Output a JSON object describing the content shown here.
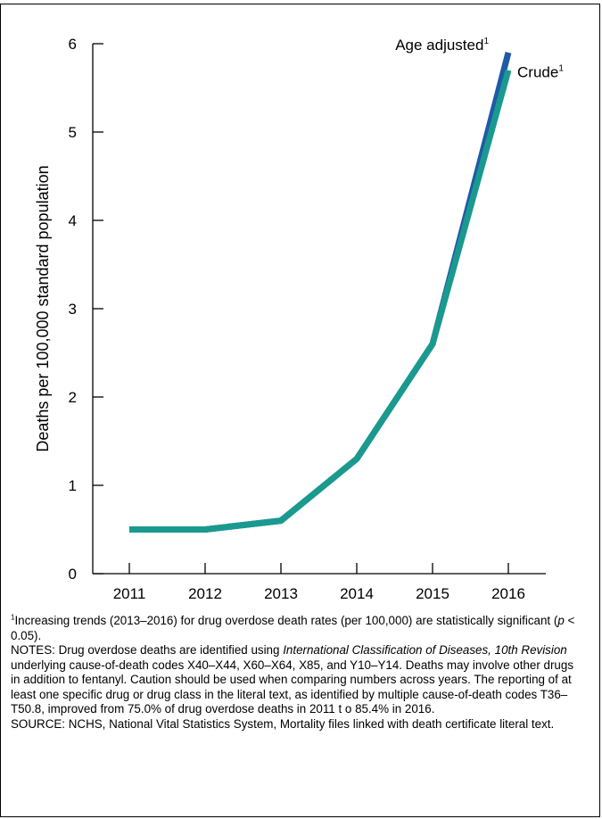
{
  "chart_data": {
    "type": "line",
    "title": "",
    "xlabel": "",
    "ylabel": "Deaths per 100,000 standard population",
    "categories": [
      "2011",
      "2012",
      "2013",
      "2014",
      "2015",
      "2016"
    ],
    "ylim": [
      0,
      6
    ],
    "yticks": [
      "0",
      "1",
      "2",
      "3",
      "4",
      "5",
      "6"
    ],
    "series": [
      {
        "name": "Age adjusted",
        "superscript": "1",
        "color": "#1f5aa6",
        "values": [
          0.5,
          0.5,
          0.6,
          1.3,
          2.6,
          5.9
        ]
      },
      {
        "name": "Crude",
        "superscript": "1",
        "color": "#1a9a8e",
        "values": [
          0.5,
          0.5,
          0.6,
          1.3,
          2.6,
          5.7
        ]
      }
    ],
    "grid": false,
    "legend": "inline labels at line ends"
  },
  "footnotes": {
    "f1_sup": "1",
    "f1_text_a": "Increasing trends (2013–2016) for drug overdose death rates (per 100,000) are statistically significant (",
    "f1_p": "p",
    "f1_text_b": " < 0.05).",
    "notes_a": "NOTES: Drug overdose deaths are identified using ",
    "notes_italic": "International Classification of Diseases, 10th Revision",
    "notes_b": " underlying cause-of-death codes X40–X44, X60–X64, X85, and Y10–Y14. Deaths may involve other drugs in addition to fentanyl. Caution should be used when comparing numbers across years. The reporting of at least one specific drug or drug class in the literal text, as identified by multiple cause-of-death codes T36–T50.8, improved from 75.0% of drug overdose deaths in 2011 t o 85.4% in 2016.",
    "source": "SOURCE: NCHS, National Vital Statistics System, Mortality files linked with death certificate literal text."
  }
}
